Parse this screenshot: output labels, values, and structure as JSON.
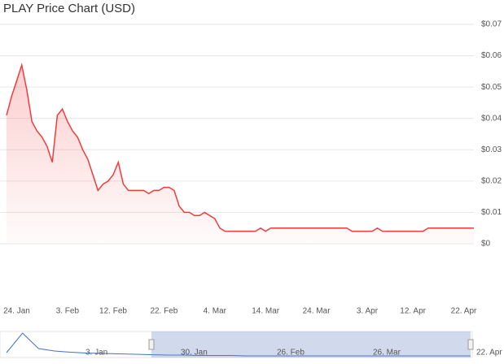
{
  "chart_data": {
    "type": "line",
    "title": "PLAY Price Chart (USD)",
    "categories": [
      "22. Jan",
      "23. Jan",
      "24. Jan",
      "25. Jan",
      "26. Jan",
      "27. Jan",
      "28. Jan",
      "29. Jan",
      "30. Jan",
      "31. Jan",
      "1. Feb",
      "2. Feb",
      "3. Feb",
      "4. Feb",
      "5. Feb",
      "6. Feb",
      "7. Feb",
      "8. Feb",
      "9. Feb",
      "10. Feb",
      "11. Feb",
      "12. Feb",
      "13. Feb",
      "14. Feb",
      "15. Feb",
      "16. Feb",
      "17. Feb",
      "18. Feb",
      "19. Feb",
      "20. Feb",
      "21. Feb",
      "22. Feb",
      "23. Feb",
      "24. Feb",
      "25. Feb",
      "26. Feb",
      "27. Feb",
      "28. Feb",
      "1. Mar",
      "2. Mar",
      "3. Mar",
      "4. Mar",
      "5. Mar",
      "6. Mar",
      "7. Mar",
      "8. Mar",
      "9. Mar",
      "10. Mar",
      "11. Mar",
      "12. Mar",
      "13. Mar",
      "14. Mar",
      "15. Mar",
      "16. Mar",
      "17. Mar",
      "18. Mar",
      "19. Mar",
      "20. Mar",
      "21. Mar",
      "22. Mar",
      "23. Mar",
      "24. Mar",
      "25. Mar",
      "26. Mar",
      "27. Mar",
      "28. Mar",
      "29. Mar",
      "30. Mar",
      "31. Mar",
      "1. Apr",
      "2. Apr",
      "3. Apr",
      "4. Apr",
      "5. Apr",
      "6. Apr",
      "7. Apr",
      "8. Apr",
      "9. Apr",
      "10. Apr",
      "11. Apr",
      "12. Apr",
      "13. Apr",
      "14. Apr",
      "15. Apr",
      "16. Apr",
      "17. Apr",
      "18. Apr",
      "19. Apr",
      "20. Apr",
      "21. Apr",
      "22. Apr",
      "23. Apr",
      "24. Apr"
    ],
    "series": [
      {
        "color": "#f23c3c",
        "values": [
          0.041,
          0.047,
          0.052,
          0.057,
          0.049,
          0.039,
          0.036,
          0.034,
          0.031,
          0.026,
          0.041,
          0.043,
          0.039,
          0.036,
          0.034,
          0.03,
          0.027,
          0.022,
          0.017,
          0.019,
          0.02,
          0.022,
          0.026,
          0.019,
          0.017,
          0.017,
          0.017,
          0.017,
          0.016,
          0.017,
          0.017,
          0.018,
          0.018,
          0.017,
          0.012,
          0.01,
          0.01,
          0.009,
          0.009,
          0.01,
          0.009,
          0.008,
          0.005,
          0.004,
          0.004,
          0.004,
          0.004,
          0.004,
          0.004,
          0.004,
          0.005,
          0.004,
          0.005,
          0.005,
          0.005,
          0.005,
          0.005,
          0.005,
          0.005,
          0.005,
          0.005,
          0.005,
          0.005,
          0.005,
          0.005,
          0.005,
          0.005,
          0.005,
          0.004,
          0.004,
          0.004,
          0.004,
          0.004,
          0.005,
          0.004,
          0.004,
          0.004,
          0.004,
          0.004,
          0.004,
          0.004,
          0.004,
          0.004,
          0.005,
          0.005,
          0.005,
          0.005,
          0.005,
          0.005,
          0.005,
          0.005,
          0.005,
          0.005
        ]
      }
    ],
    "xticks": [
      "24. Jan",
      "3. Feb",
      "12. Feb",
      "22. Feb",
      "4. Mar",
      "14. Mar",
      "24. Mar",
      "3. Apr",
      "12. Apr",
      "22. Apr"
    ],
    "ylim": [
      0,
      0.07
    ],
    "yticks": [
      {
        "value": 0,
        "label": "$0"
      },
      {
        "value": 0.01,
        "label": "$0.01"
      },
      {
        "value": 0.02,
        "label": "$0.02"
      },
      {
        "value": 0.03,
        "label": "$0.03"
      },
      {
        "value": 0.04,
        "label": "$0.04"
      },
      {
        "value": 0.05,
        "label": "$0.05"
      },
      {
        "value": 0.06,
        "label": "$0.06"
      },
      {
        "value": 0.07,
        "label": "$0.07"
      }
    ],
    "grid": true,
    "navigator": {
      "labels": [
        "3. Jan",
        "30. Jan",
        "26. Feb",
        "26. Mar",
        "22. Apr"
      ],
      "values": [
        0.012,
        0.06,
        0.022,
        0.016,
        0.013,
        0.011,
        0.01,
        0.009,
        0.008,
        0.007,
        0.006,
        0.006,
        0.005,
        0.005,
        0.005,
        0.004,
        0.004,
        0.004,
        0.004,
        0.004,
        0.004,
        0.004,
        0.004,
        0.004,
        0.004,
        0.004,
        0.004,
        0.004,
        0.004,
        0.004
      ]
    }
  }
}
